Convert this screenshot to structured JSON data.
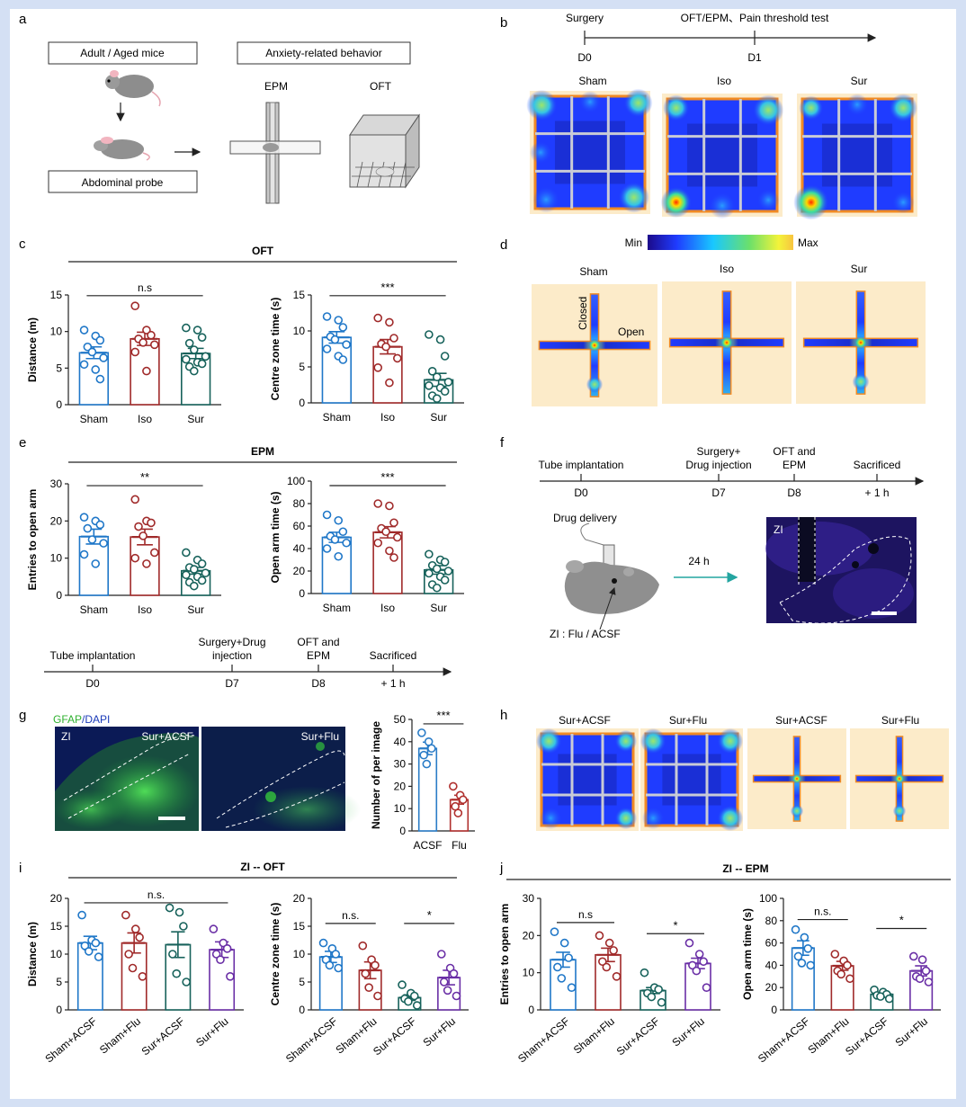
{
  "panels": {
    "a": {
      "letter": "a",
      "box_mice": "Adult / Aged  mice",
      "box_probe": "Abdominal probe",
      "box_behavior": "Anxiety-related behavior",
      "epm_label": "EPM",
      "oft_label": "OFT"
    },
    "b": {
      "letter": "b",
      "timeline": {
        "events": [
          {
            "top": "Surgery",
            "day": "D0"
          },
          {
            "top": "OFT/EPM、Pain threshold test",
            "day": "D1"
          }
        ]
      },
      "heatmaps": [
        "Sham",
        "Iso",
        "Sur"
      ]
    },
    "c": {
      "letter": "c",
      "title": "OFT"
    },
    "d": {
      "letter": "d",
      "scale_min": "Min",
      "scale_max": "Max",
      "maps": [
        "Sham",
        "Iso",
        "Sur"
      ],
      "closed_label": "Closed",
      "open_label": "Open"
    },
    "e": {
      "letter": "e",
      "title": "EPM"
    },
    "f": {
      "letter": "f",
      "timeline": [
        {
          "top": "Tube implantation",
          "day": "D0"
        },
        {
          "top": "Surgery+\nDrug injection",
          "day": "D7"
        },
        {
          "top": "OFT and\nEPM",
          "day": "D8"
        },
        {
          "top": "Sacrificed",
          "day": "+ 1 h"
        }
      ],
      "drug_delivery": "Drug delivery",
      "arrow_label": "24 h",
      "injection_label": "ZI : Flu / ACSF",
      "image_label": "ZI"
    },
    "mid_timeline": [
      {
        "top": "Tube implantation",
        "day": "D0"
      },
      {
        "top": "Surgery+Drug\ninjection",
        "day": "D7"
      },
      {
        "top": "OFT and\nEPM",
        "day": "D8"
      },
      {
        "top": "Sacrificed",
        "day": "+ 1 h"
      }
    ],
    "g": {
      "letter": "g",
      "stain_gfap": "GFAP",
      "stain_dapi": "DAPI",
      "images": [
        {
          "region": "ZI",
          "condition": "Sur+ACSF"
        },
        {
          "region": "",
          "condition": "Sur+Flu"
        }
      ]
    },
    "h": {
      "letter": "h",
      "labels": [
        "Sur+ACSF",
        "Sur+Flu",
        "Sur+ACSF",
        "Sur+Flu"
      ]
    },
    "i": {
      "letter": "i",
      "title": "ZI -- OFT"
    },
    "j": {
      "letter": "j",
      "title": "ZI -- EPM"
    }
  },
  "colors": {
    "sham": "#1f77c8",
    "iso": "#a02a2a",
    "sur": "#17625b",
    "flu": "#6a2fa6",
    "blue_acsf": "#2a7cc7",
    "red_flu": "#b0302e"
  },
  "chart_data": [
    {
      "id": "c1",
      "type": "bar",
      "ylabel": "Distance (m)",
      "ylim": [
        0,
        15
      ],
      "yticks": [
        0,
        5,
        10,
        15
      ],
      "categories": [
        "Sham",
        "Iso",
        "Sur"
      ],
      "values": [
        7.1,
        9.0,
        7.0
      ],
      "errors": [
        0.8,
        0.9,
        0.7
      ],
      "points": [
        [
          10.2,
          9.4,
          8.8,
          7.9,
          7.2,
          6.4,
          5.5,
          4.8,
          3.5
        ],
        [
          13.5,
          10.2,
          9.5,
          9.0,
          8.5,
          8.2,
          7.2,
          4.6
        ],
        [
          10.5,
          10.2,
          9.2,
          8.4,
          7.5,
          6.6,
          6.2,
          5.8,
          5.6,
          5.2,
          4.6
        ]
      ],
      "brackets": [
        {
          "from": 0,
          "to": 2,
          "label": "n.s",
          "y": 14.9
        }
      ]
    },
    {
      "id": "c2",
      "type": "bar",
      "ylabel": "Centre zone time (s)",
      "ylim": [
        0,
        15
      ],
      "yticks": [
        0,
        5,
        10,
        15
      ],
      "categories": [
        "Sham",
        "Iso",
        "Sur"
      ],
      "values": [
        9.1,
        7.8,
        3.2
      ],
      "errors": [
        0.8,
        1.0,
        0.9
      ],
      "points": [
        [
          12.0,
          11.5,
          10.5,
          9.2,
          8.8,
          8.1,
          7.5,
          6.5,
          6.0
        ],
        [
          11.8,
          11.2,
          9.0,
          8.2,
          7.8,
          6.2,
          4.9,
          2.8
        ],
        [
          9.5,
          8.8,
          6.5,
          4.4,
          3.6,
          2.9,
          2.4,
          2.1,
          1.6,
          1.0,
          0.6
        ]
      ],
      "brackets": [
        {
          "from": 0,
          "to": 2,
          "label": "***",
          "y": 14.9
        }
      ]
    },
    {
      "id": "e1",
      "type": "bar",
      "ylabel": "Entries to open arm",
      "ylim": [
        0,
        30
      ],
      "yticks": [
        0,
        10,
        20,
        30
      ],
      "categories": [
        "Sham",
        "Iso",
        "Sur"
      ],
      "values": [
        15.8,
        15.7,
        6.6
      ],
      "errors": [
        2.0,
        2.1,
        0.9
      ],
      "points": [
        [
          21.0,
          20.0,
          19.0,
          18.0,
          15.0,
          14.0,
          11.0,
          8.5
        ],
        [
          25.8,
          20.0,
          19.5,
          18.5,
          16.0,
          11.5,
          10.0,
          8.5
        ],
        [
          11.5,
          9.5,
          8.5,
          7.5,
          7.0,
          6.0,
          5.5,
          5.0,
          4.0,
          3.5,
          2.5
        ]
      ],
      "brackets": [
        {
          "from": 0,
          "to": 2,
          "label": "**",
          "y": 29.5
        }
      ]
    },
    {
      "id": "e2",
      "type": "bar",
      "ylabel": "Open arm time (s)",
      "ylim": [
        0,
        100
      ],
      "yticks": [
        0,
        20,
        40,
        60,
        80,
        100
      ],
      "categories": [
        "Sham",
        "Iso",
        "Sur"
      ],
      "values": [
        50.0,
        54.5,
        21.0
      ],
      "errors": [
        4.5,
        5.0,
        3.8
      ],
      "points": [
        [
          70.0,
          65.0,
          55.0,
          51.0,
          48.0,
          45.0,
          40.0,
          33.0
        ],
        [
          80.0,
          78.0,
          63.0,
          58.0,
          55.0,
          50.0,
          45.0,
          38.0,
          32.0
        ],
        [
          35.0,
          30.0,
          28.0,
          25.0,
          22.0,
          20.0,
          18.0,
          15.0,
          12.0,
          8.0,
          5.0
        ]
      ],
      "brackets": [
        {
          "from": 0,
          "to": 2,
          "label": "***",
          "y": 96.0
        }
      ]
    },
    {
      "id": "g",
      "type": "bar",
      "ylabel": "Number of per image",
      "ylim": [
        0,
        50
      ],
      "yticks": [
        0,
        10,
        20,
        30,
        40,
        50
      ],
      "categories": [
        "ACSF",
        "Flu"
      ],
      "values": [
        37.0,
        14.0
      ],
      "errors": [
        2.8,
        2.0
      ],
      "points": [
        [
          44.0,
          40.0,
          37.0,
          34.0,
          30.0
        ],
        [
          20.0,
          16.0,
          14.0,
          11.0,
          8.0
        ]
      ],
      "brackets": [
        {
          "from": 0,
          "to": 1,
          "label": "***",
          "y": 48.0
        }
      ]
    },
    {
      "id": "i1",
      "type": "bar",
      "ylabel": "Distance (m)",
      "ylim": [
        0,
        20
      ],
      "yticks": [
        0,
        5,
        10,
        15,
        20
      ],
      "categories": [
        "Sham+ACSF",
        "Sham+Flu",
        "Sur+ACSF",
        "Sur+Flu"
      ],
      "values": [
        12.0,
        12.0,
        11.7,
        10.8
      ],
      "errors": [
        1.2,
        1.8,
        2.3,
        1.4
      ],
      "points": [
        [
          17.0,
          12.5,
          12.0,
          11.5,
          10.5,
          9.5
        ],
        [
          17.0,
          14.5,
          13.0,
          10.0,
          7.5,
          6.0
        ],
        [
          18.3,
          17.5,
          15.0,
          10.0,
          6.5,
          5.0
        ],
        [
          14.5,
          12.0,
          11.0,
          10.0,
          9.0,
          6.0
        ]
      ],
      "brackets": [
        {
          "from": 0,
          "to": 3,
          "label": "n.s.",
          "y": 19.2
        }
      ]
    },
    {
      "id": "i2",
      "type": "bar",
      "ylabel": "Centre zone time (s)",
      "ylim": [
        0,
        20
      ],
      "yticks": [
        0,
        5,
        10,
        15,
        20
      ],
      "categories": [
        "Sham+ACSF",
        "Sham+Flu",
        "Sur+ACSF",
        "Sur+Flu"
      ],
      "values": [
        9.5,
        7.1,
        2.2,
        5.8
      ],
      "errors": [
        1.0,
        1.5,
        0.5,
        1.3
      ],
      "points": [
        [
          12.0,
          11.0,
          10.0,
          9.0,
          8.0,
          7.5
        ],
        [
          11.5,
          9.0,
          8.0,
          6.5,
          4.0,
          2.5
        ],
        [
          4.5,
          3.0,
          2.5,
          2.0,
          1.5,
          0.8
        ],
        [
          10.0,
          7.5,
          6.5,
          5.0,
          3.5,
          2.5
        ]
      ],
      "brackets": [
        {
          "from": 0,
          "to": 1,
          "label": "n.s.",
          "y": 15.5
        },
        {
          "from": 2,
          "to": 3,
          "label": "*",
          "y": 15.5
        }
      ]
    },
    {
      "id": "j1",
      "type": "bar",
      "ylabel": "Entries to open arm",
      "ylim": [
        0,
        30
      ],
      "yticks": [
        0,
        10,
        20,
        30
      ],
      "categories": [
        "Sham+ACSF",
        "Sham+Flu",
        "Sur+ACSF",
        "Sur+Flu"
      ],
      "values": [
        13.5,
        14.8,
        5.2,
        12.5
      ],
      "errors": [
        2.0,
        1.8,
        0.8,
        1.4
      ],
      "points": [
        [
          21.0,
          18.0,
          14.0,
          11.5,
          8.5,
          6.0
        ],
        [
          20.0,
          18.0,
          16.0,
          13.0,
          11.5,
          9.0
        ],
        [
          10.0,
          6.0,
          5.5,
          4.5,
          3.5,
          2.0
        ],
        [
          18.0,
          15.0,
          13.0,
          12.0,
          10.5,
          6.0
        ]
      ],
      "brackets": [
        {
          "from": 0,
          "to": 1,
          "label": "n.s",
          "y": 23.5
        },
        {
          "from": 2,
          "to": 3,
          "label": "*",
          "y": 20.5
        }
      ]
    },
    {
      "id": "j2",
      "type": "bar",
      "ylabel": "Open arm time (s)",
      "ylim": [
        0,
        100
      ],
      "yticks": [
        0,
        20,
        40,
        60,
        80,
        100
      ],
      "categories": [
        "Sham+ACSF",
        "Sham+Flu",
        "Sur+ACSF",
        "Sur+Flu"
      ],
      "values": [
        55.5,
        39.5,
        14.0,
        35.0
      ],
      "errors": [
        6.5,
        4.0,
        1.5,
        4.5
      ],
      "points": [
        [
          72.0,
          65.0,
          55.0,
          48.0,
          42.0,
          40.0
        ],
        [
          50.0,
          44.0,
          40.0,
          35.0,
          32.0,
          28.0
        ],
        [
          18.0,
          16.0,
          14.0,
          13.0,
          12.0,
          10.0
        ],
        [
          48.0,
          45.0,
          35.0,
          30.0,
          28.0,
          25.0
        ]
      ],
      "brackets": [
        {
          "from": 0,
          "to": 1,
          "label": "n.s.",
          "y": 81.0
        },
        {
          "from": 2,
          "to": 3,
          "label": "*",
          "y": 73.0
        }
      ]
    }
  ]
}
